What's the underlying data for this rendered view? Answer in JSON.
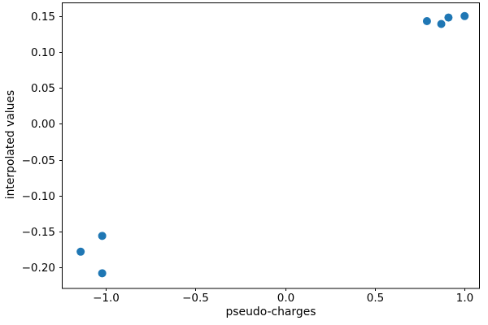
{
  "chart_data": {
    "type": "scatter",
    "title": "",
    "xlabel": "pseudo-charges",
    "ylabel": "interpolated values",
    "marker_color": "#1f77b4",
    "axis_color": "#000000",
    "background_color": "#ffffff",
    "grid": false,
    "xlim": [
      -1.245,
      1.085
    ],
    "ylim": [
      -0.228,
      0.169
    ],
    "xticks": [
      {
        "value": -1.0,
        "label": "−1.0"
      },
      {
        "value": -0.5,
        "label": "−0.5"
      },
      {
        "value": 0.0,
        "label": "0.0"
      },
      {
        "value": 0.5,
        "label": "0.5"
      },
      {
        "value": 1.0,
        "label": "1.0"
      }
    ],
    "yticks": [
      {
        "value": 0.15,
        "label": "0.15"
      },
      {
        "value": 0.1,
        "label": "0.10"
      },
      {
        "value": 0.05,
        "label": "0.05"
      },
      {
        "value": 0.0,
        "label": "0.00"
      },
      {
        "value": -0.05,
        "label": "−0.05"
      },
      {
        "value": -0.1,
        "label": "−0.10"
      },
      {
        "value": -0.15,
        "label": "−0.15"
      },
      {
        "value": -0.2,
        "label": "−0.20"
      }
    ],
    "points": [
      {
        "x": -1.02,
        "y": -0.156
      },
      {
        "x": -1.14,
        "y": -0.178
      },
      {
        "x": -1.02,
        "y": -0.208
      },
      {
        "x": 0.79,
        "y": 0.143
      },
      {
        "x": 0.87,
        "y": 0.139
      },
      {
        "x": 0.91,
        "y": 0.148
      },
      {
        "x": 1.0,
        "y": 0.15
      }
    ]
  }
}
